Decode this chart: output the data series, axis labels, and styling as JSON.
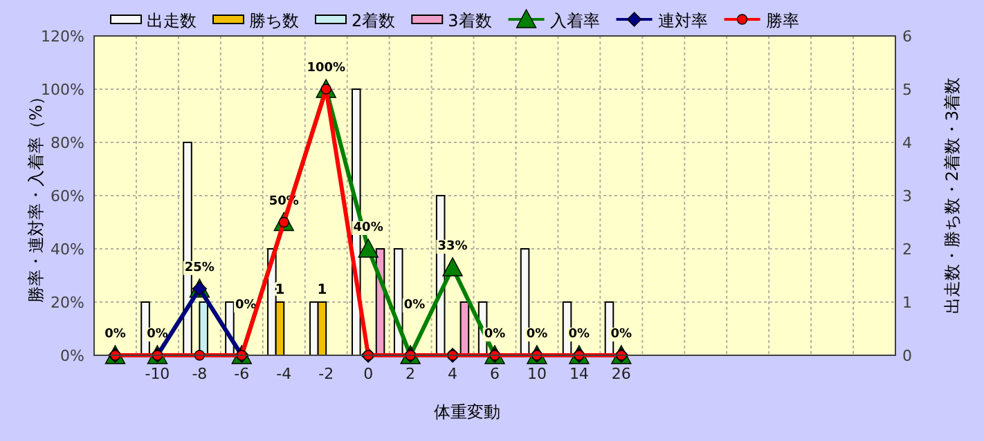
{
  "chart_data": {
    "type": "bar",
    "xlabel": "体重変動",
    "ylabel": "勝率・連対率・入着率（%）",
    "y2label": "出走数・勝ち数・2着数・3着数",
    "categories": [
      null,
      "-10",
      "-8",
      "-6",
      "-4",
      "-2",
      "0",
      "2",
      "4",
      "6",
      "10",
      "14",
      "26",
      null,
      null,
      null,
      null,
      null,
      null
    ],
    "series": [
      {
        "name": "出走数",
        "axis": "y2",
        "color": "#f8f8f8",
        "values": [
          0,
          1,
          4,
          1,
          2,
          1,
          5,
          2,
          3,
          1,
          2,
          1,
          1,
          null,
          null,
          null,
          null,
          null,
          null
        ]
      },
      {
        "name": "勝ち数",
        "axis": "y2",
        "color": "#f0c000",
        "values": [
          0,
          0,
          0,
          0,
          1,
          1,
          0,
          0,
          0,
          0,
          0,
          0,
          0,
          null,
          null,
          null,
          null,
          null,
          null
        ],
        "value_labels": [
          null,
          null,
          null,
          null,
          "1",
          "1",
          null,
          null,
          null,
          null,
          null,
          null,
          null,
          null,
          null,
          null,
          null,
          null,
          null
        ]
      },
      {
        "name": "2着数",
        "axis": "y2",
        "color": "#c8f0f0",
        "values": [
          0,
          0,
          1,
          0,
          0,
          0,
          0,
          0,
          0,
          0,
          0,
          0,
          0,
          null,
          null,
          null,
          null,
          null,
          null
        ]
      },
      {
        "name": "3着数",
        "axis": "y2",
        "color": "#f0a0c8",
        "values": [
          0,
          0,
          0,
          0,
          0,
          0,
          2,
          0,
          1,
          0,
          0,
          0,
          0,
          null,
          null,
          null,
          null,
          null,
          null
        ]
      },
      {
        "name": "入着率",
        "type": "line",
        "color": "#008000",
        "marker": "triangle",
        "values": [
          0,
          0,
          25,
          0,
          50,
          100,
          40,
          0,
          33,
          0,
          0,
          0,
          0,
          null,
          null,
          null,
          null,
          null,
          null
        ],
        "value_labels": [
          "0%",
          "0%",
          "25%",
          "0%",
          "50%",
          "100%",
          "40%",
          "0%",
          "33%",
          "0%",
          "0%",
          "0%",
          "0%",
          null,
          null,
          null,
          null,
          null,
          null
        ]
      },
      {
        "name": "連対率",
        "type": "line",
        "color": "#000080",
        "marker": "diamond",
        "values": [
          0,
          0,
          25,
          0,
          null,
          null,
          0,
          0,
          0,
          0,
          0,
          0,
          0,
          null,
          null,
          null,
          null,
          null,
          null
        ]
      },
      {
        "name": "勝率",
        "type": "line",
        "color": "#ff0000",
        "marker": "circle",
        "values": [
          0,
          0,
          0,
          0,
          50,
          100,
          0,
          0,
          0,
          0,
          0,
          0,
          0,
          null,
          null,
          null,
          null,
          null,
          null
        ]
      }
    ],
    "ylim": [
      0,
      120
    ],
    "yticks": [
      {
        "value": 0,
        "label": "0%"
      },
      {
        "value": 20,
        "label": "20%"
      },
      {
        "value": 40,
        "label": "40%"
      },
      {
        "value": 60,
        "label": "60%"
      },
      {
        "value": 80,
        "label": "80%"
      },
      {
        "value": 100,
        "label": "100%"
      },
      {
        "value": 120,
        "label": "120%"
      }
    ],
    "y2lim": [
      0,
      6
    ],
    "y2ticks": [
      0,
      1,
      2,
      3,
      4,
      5,
      6
    ],
    "grid": true,
    "legend": "top",
    "line_style": "solid"
  }
}
